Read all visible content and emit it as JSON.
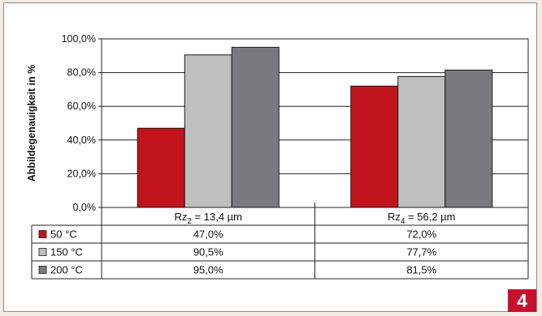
{
  "chart_data": {
    "type": "bar",
    "ylabel": "Abbildegenauigkeit in %",
    "ylim": [
      0,
      100
    ],
    "yticks": [
      "0,0%",
      "20,0%",
      "40,0%",
      "60,0%",
      "80,0%",
      "100,0%"
    ],
    "grid": true,
    "categories": [
      {
        "base": "Rz",
        "sub": "2",
        "rest": " = 13,4 µm"
      },
      {
        "base": "Rz",
        "sub": "4",
        "rest": " = 56,2 µm"
      }
    ],
    "series": [
      {
        "name": "50 °C",
        "color": "#c0131c",
        "values": [
          47.0,
          72.0
        ],
        "labels": [
          "47,0%",
          "72,0%"
        ]
      },
      {
        "name": "150 °C",
        "color": "#bfbfbf",
        "values": [
          90.5,
          77.7
        ],
        "labels": [
          "90,5%",
          "77,7%"
        ]
      },
      {
        "name": "200 °C",
        "color": "#7a7a7e",
        "values": [
          95.0,
          81.5
        ],
        "labels": [
          "95,0%",
          "81,5%"
        ]
      }
    ]
  },
  "figure_number": "4"
}
